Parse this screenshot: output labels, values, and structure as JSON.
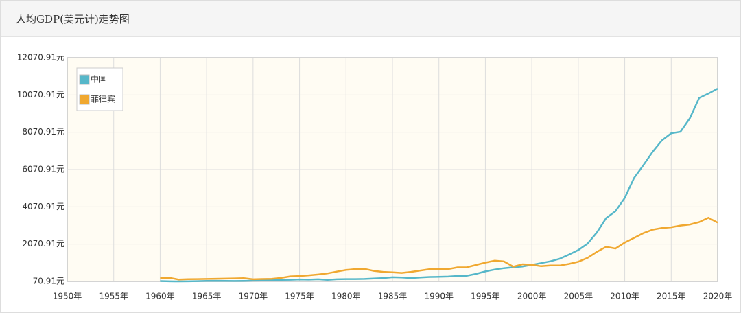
{
  "chart_data": {
    "type": "line",
    "title": "人均GDP(美元计)走势图",
    "x": [
      1960,
      1961,
      1962,
      1963,
      1964,
      1965,
      1966,
      1967,
      1968,
      1969,
      1970,
      1971,
      1972,
      1973,
      1974,
      1975,
      1976,
      1977,
      1978,
      1979,
      1980,
      1981,
      1982,
      1983,
      1984,
      1985,
      1986,
      1987,
      1988,
      1989,
      1990,
      1991,
      1992,
      1993,
      1994,
      1995,
      1996,
      1997,
      1998,
      1999,
      2000,
      2001,
      2002,
      2003,
      2004,
      2005,
      2006,
      2007,
      2008,
      2009,
      2010,
      2011,
      2012,
      2013,
      2014,
      2015,
      2016,
      2017,
      2018,
      2019,
      2020
    ],
    "series": [
      {
        "name": "中国",
        "color": "#56b7c9",
        "values": [
          90,
          76,
          71,
          74,
          86,
          99,
          104,
          97,
          92,
          100,
          113,
          119,
          132,
          157,
          160,
          178,
          165,
          185,
          156,
          184,
          195,
          197,
          203,
          225,
          251,
          295,
          282,
          252,
          284,
          311,
          318,
          333,
          367,
          377,
          474,
          610,
          709,
          782,
          829,
          873,
          959,
          1053,
          1149,
          1289,
          1509,
          1753,
          2099,
          2694,
          3468,
          3832,
          4551,
          5614,
          6301,
          7020,
          7636,
          8016,
          8094,
          8817,
          9905,
          10144,
          10409
        ]
      },
      {
        "name": "菲律宾",
        "color": "#f0a830",
        "values": [
          254,
          266,
          171,
          190,
          195,
          202,
          213,
          222,
          233,
          249,
          185,
          198,
          210,
          260,
          345,
          362,
          400,
          442,
          502,
          598,
          684,
          734,
          744,
          639,
          583,
          560,
          527,
          581,
          658,
          729,
          735,
          735,
          824,
          829,
          953,
          1080,
          1183,
          1142,
          863,
          992,
          963,
          888,
          929,
          926,
          1009,
          1126,
          1335,
          1656,
          1931,
          1833,
          2155,
          2404,
          2659,
          2847,
          2935,
          2974,
          3069,
          3124,
          3252,
          3485,
          3224
        ]
      }
    ],
    "xlim": [
      1950,
      2020
    ],
    "xticks": [
      {
        "value": 1950,
        "label": "1950年"
      },
      {
        "value": 1955,
        "label": "1955年"
      },
      {
        "value": 1960,
        "label": "1960年"
      },
      {
        "value": 1965,
        "label": "1965年"
      },
      {
        "value": 1970,
        "label": "1970年"
      },
      {
        "value": 1975,
        "label": "1975年"
      },
      {
        "value": 1980,
        "label": "1980年"
      },
      {
        "value": 1985,
        "label": "1985年"
      },
      {
        "value": 1990,
        "label": "1990年"
      },
      {
        "value": 1995,
        "label": "1995年"
      },
      {
        "value": 2000,
        "label": "2000年"
      },
      {
        "value": 2005,
        "label": "2005年"
      },
      {
        "value": 2010,
        "label": "2010年"
      },
      {
        "value": 2015,
        "label": "2015年"
      },
      {
        "value": 2020,
        "label": "2020年"
      }
    ],
    "ylim": [
      70.91,
      12070.91
    ],
    "yticks": [
      {
        "value": 70.91,
        "label": "70.91元"
      },
      {
        "value": 2070.91,
        "label": "2070.91元"
      },
      {
        "value": 4070.91,
        "label": "4070.91元"
      },
      {
        "value": 6070.91,
        "label": "6070.91元"
      },
      {
        "value": 8070.91,
        "label": "8070.91元"
      },
      {
        "value": 10070.91,
        "label": "10070.91元"
      },
      {
        "value": 12070.91,
        "label": "12070.91元"
      }
    ],
    "grid": true,
    "legend": "upper left"
  }
}
